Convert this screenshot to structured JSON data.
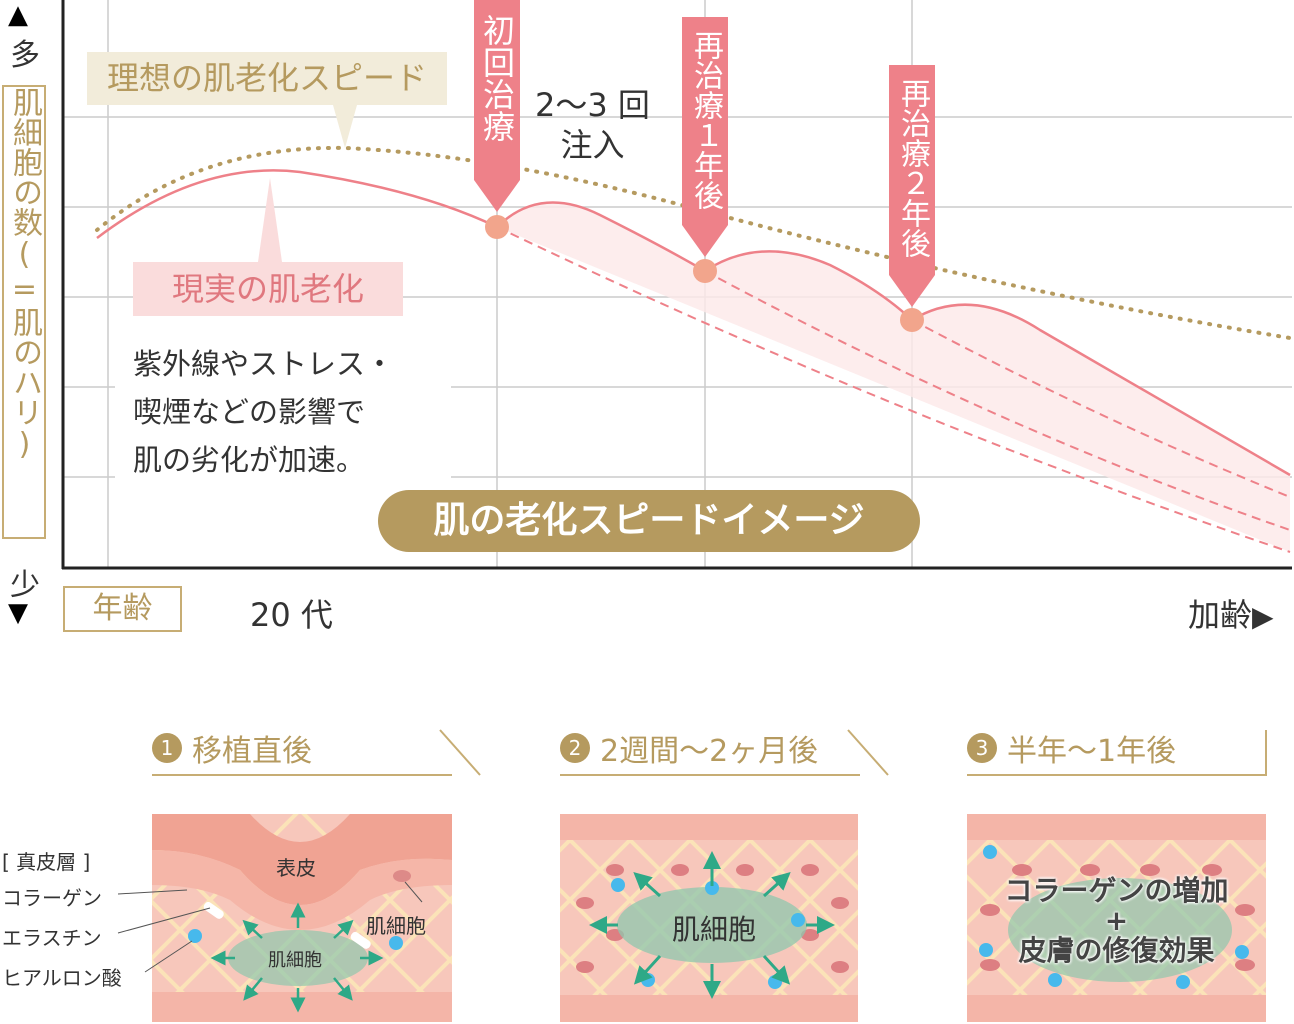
{
  "axis": {
    "y_top": "多",
    "y_bottom": "少",
    "y_label": "肌細胞の数(=肌のハリ)",
    "x_label": "年齢",
    "x_start": "20 代",
    "x_end": "加齢"
  },
  "curves": {
    "ideal": "理想の肌老化スピード",
    "real": "現実の肌老化"
  },
  "markers": [
    {
      "label": "初回治療"
    },
    {
      "label": "再治療１年後"
    },
    {
      "label": "再治療２年後"
    }
  ],
  "injection_note": [
    "2〜3 回",
    "注入"
  ],
  "cause_text": [
    "紫外線やストレス・",
    "喫煙などの影響で",
    "肌の劣化が加速。"
  ],
  "title_pill": "肌の老化スピードイメージ",
  "colors": {
    "gold": "#b59a5f",
    "pink": "#ee8189",
    "skin": "#f4b5a8"
  },
  "steps": [
    {
      "num": "1",
      "label": "移植直後"
    },
    {
      "num": "2",
      "label": "2週間〜2ヶ月後"
    },
    {
      "num": "3",
      "label": "半年〜1年後"
    }
  ],
  "panel1": {
    "legend_title": "[ 真皮層 ]",
    "collagen": "コラーゲン",
    "elastin": "エラスチン",
    "hyaluronic": "ヒアルロン酸",
    "epidermis": "表皮",
    "cell": "肌細胞",
    "cell_side": "肌細胞"
  },
  "panel2": {
    "cell": "肌細胞"
  },
  "panel3": {
    "line1": "コラーゲンの増加",
    "plus": "+",
    "line2": "皮膚の修復効果"
  }
}
